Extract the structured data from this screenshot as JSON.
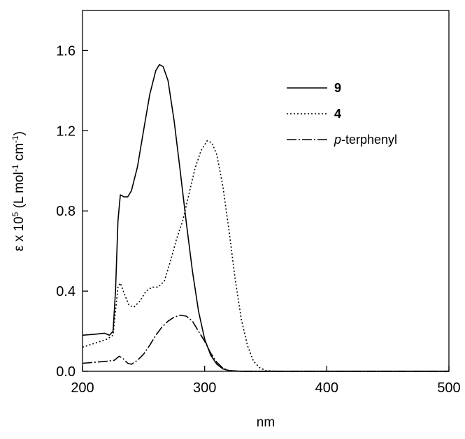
{
  "chart_data": {
    "type": "line",
    "xlabel": "nm",
    "ylabel_parts": {
      "symbol": "ε",
      "times": " x 10",
      "exp": "5",
      "unit_open": " (L mol",
      "unit_exp1": "-1",
      "unit_mid": " cm",
      "unit_exp2": "-1",
      "unit_close": ")"
    },
    "xlim": [
      200,
      500
    ],
    "ylim": [
      0,
      1.8
    ],
    "x_ticks": [
      200,
      300,
      400,
      500
    ],
    "x_tick_labels": [
      "200",
      "300",
      "400",
      "500"
    ],
    "y_ticks": [
      0.0,
      0.4,
      0.8,
      1.2,
      1.6
    ],
    "y_tick_labels": [
      "0.0",
      "0.4",
      "0.8",
      "1.2",
      "1.6"
    ],
    "grid": false,
    "legend_position": "top-right",
    "series": [
      {
        "name": "9",
        "style": "solid",
        "points": [
          [
            200,
            0.18
          ],
          [
            210,
            0.185
          ],
          [
            218,
            0.19
          ],
          [
            222,
            0.18
          ],
          [
            225,
            0.2
          ],
          [
            227,
            0.4
          ],
          [
            229,
            0.75
          ],
          [
            231,
            0.88
          ],
          [
            234,
            0.87
          ],
          [
            237,
            0.87
          ],
          [
            240,
            0.9
          ],
          [
            245,
            1.02
          ],
          [
            250,
            1.2
          ],
          [
            255,
            1.38
          ],
          [
            260,
            1.5
          ],
          [
            263,
            1.53
          ],
          [
            266,
            1.52
          ],
          [
            270,
            1.45
          ],
          [
            275,
            1.25
          ],
          [
            280,
            1.0
          ],
          [
            285,
            0.74
          ],
          [
            290,
            0.5
          ],
          [
            295,
            0.3
          ],
          [
            300,
            0.16
          ],
          [
            305,
            0.08
          ],
          [
            310,
            0.035
          ],
          [
            315,
            0.012
          ],
          [
            320,
            0.004
          ],
          [
            330,
            0
          ],
          [
            500,
            0
          ]
        ]
      },
      {
        "name": "4",
        "style": "dotted",
        "points": [
          [
            200,
            0.12
          ],
          [
            210,
            0.14
          ],
          [
            220,
            0.16
          ],
          [
            225,
            0.18
          ],
          [
            227,
            0.3
          ],
          [
            229,
            0.42
          ],
          [
            231,
            0.44
          ],
          [
            234,
            0.39
          ],
          [
            238,
            0.33
          ],
          [
            242,
            0.32
          ],
          [
            247,
            0.35
          ],
          [
            252,
            0.4
          ],
          [
            257,
            0.42
          ],
          [
            262,
            0.42
          ],
          [
            267,
            0.45
          ],
          [
            272,
            0.55
          ],
          [
            277,
            0.66
          ],
          [
            282,
            0.75
          ],
          [
            287,
            0.88
          ],
          [
            292,
            1.01
          ],
          [
            297,
            1.1
          ],
          [
            302,
            1.15
          ],
          [
            306,
            1.14
          ],
          [
            310,
            1.08
          ],
          [
            315,
            0.92
          ],
          [
            320,
            0.7
          ],
          [
            325,
            0.46
          ],
          [
            330,
            0.26
          ],
          [
            335,
            0.13
          ],
          [
            340,
            0.05
          ],
          [
            345,
            0.018
          ],
          [
            350,
            0.004
          ],
          [
            360,
            0
          ],
          [
            500,
            0
          ]
        ]
      },
      {
        "name": "p-terphenyl",
        "style": "dash-dot",
        "points": [
          [
            200,
            0.04
          ],
          [
            210,
            0.045
          ],
          [
            220,
            0.05
          ],
          [
            226,
            0.055
          ],
          [
            230,
            0.075
          ],
          [
            233,
            0.065
          ],
          [
            237,
            0.04
          ],
          [
            240,
            0.035
          ],
          [
            245,
            0.055
          ],
          [
            250,
            0.085
          ],
          [
            255,
            0.13
          ],
          [
            260,
            0.18
          ],
          [
            265,
            0.22
          ],
          [
            270,
            0.25
          ],
          [
            275,
            0.27
          ],
          [
            280,
            0.28
          ],
          [
            285,
            0.275
          ],
          [
            290,
            0.25
          ],
          [
            295,
            0.2
          ],
          [
            300,
            0.15
          ],
          [
            305,
            0.09
          ],
          [
            310,
            0.045
          ],
          [
            315,
            0.015
          ],
          [
            320,
            0.004
          ],
          [
            330,
            0
          ],
          [
            500,
            0
          ]
        ]
      }
    ]
  },
  "legend": [
    {
      "name_pre": "",
      "name_italic": "",
      "name_post": "9",
      "bold": true,
      "style": "solid"
    },
    {
      "name_pre": "",
      "name_italic": "",
      "name_post": "4",
      "bold": true,
      "style": "dotted"
    },
    {
      "name_pre": "",
      "name_italic": "p",
      "name_post": "-terphenyl",
      "bold": false,
      "style": "dash-dot"
    }
  ],
  "colors": {
    "ink": "#000000",
    "background": "#ffffff"
  }
}
